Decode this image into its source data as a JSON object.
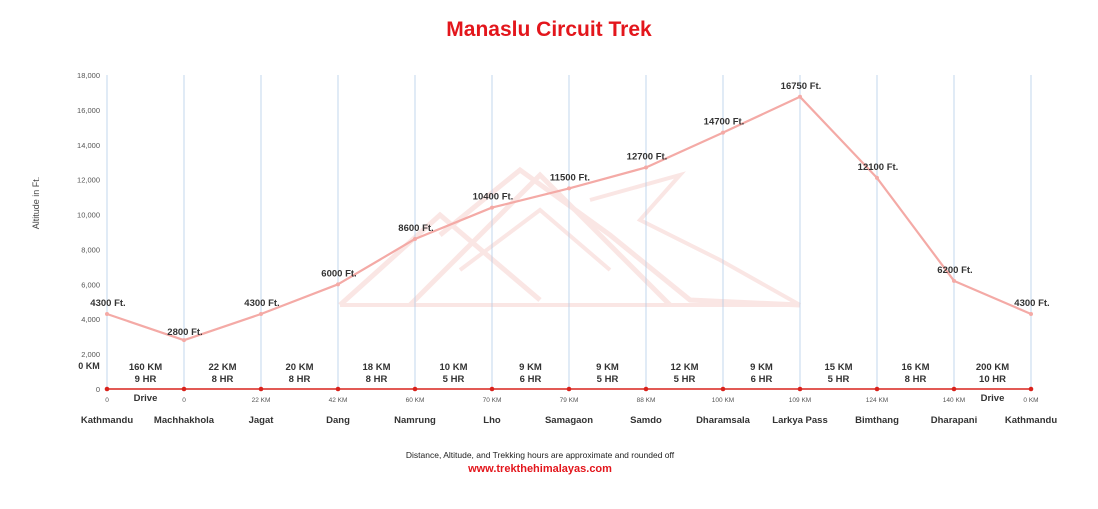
{
  "chart_data": {
    "type": "line",
    "title": "Manaslu Circuit  Trek",
    "ylabel": "Altitude in Ft.",
    "xlabel": "",
    "ylim": [
      0,
      18000
    ],
    "yticks": [
      0,
      2000,
      4000,
      6000,
      8000,
      10000,
      12000,
      14000,
      16000,
      18000
    ],
    "ytick_labels": [
      "0",
      "2,000",
      "4,000",
      "6,000",
      "8,000",
      "10,000",
      "12,000",
      "14,000",
      "16,000",
      "18,000"
    ],
    "grid": "vertical",
    "places": [
      "Kathmandu",
      "Machhakhola",
      "Jagat",
      "Dang",
      "Namrung",
      "Lho",
      "Samagaon",
      "Samdo",
      "Dharamsala",
      "Larkya Pass",
      "Bimthang",
      "Dharapani",
      "Kathmandu"
    ],
    "altitudes": [
      4300,
      2800,
      4300,
      6000,
      8600,
      10400,
      11500,
      12700,
      14700,
      16750,
      12100,
      6200,
      4300
    ],
    "altitude_labels": [
      "4300 Ft.",
      "2800 Ft.",
      "4300 Ft.",
      "6000 Ft.",
      "8600 Ft.",
      "10400 Ft.",
      "11500 Ft.",
      "12700 Ft.",
      "14700 Ft.",
      "16750 Ft.",
      "12100 Ft.",
      "6200 Ft.",
      "4300 Ft."
    ],
    "cumulative_km_labels": [
      "0",
      "0",
      "22 KM",
      "42 KM",
      "60 KM",
      "70 KM",
      "79 KM",
      "88 KM",
      "100 KM",
      "109 KM",
      "124 KM",
      "140 KM",
      "0 KM"
    ],
    "start_km_label": "0 KM",
    "segments": [
      {
        "km": "160 KM",
        "hours": "9 HR",
        "mode": "Drive"
      },
      {
        "km": "22 KM",
        "hours": "8 HR",
        "mode": ""
      },
      {
        "km": "20 KM",
        "hours": "8 HR",
        "mode": ""
      },
      {
        "km": "18 KM",
        "hours": "8 HR",
        "mode": ""
      },
      {
        "km": "10 KM",
        "hours": "5 HR",
        "mode": ""
      },
      {
        "km": "9 KM",
        "hours": "6 HR",
        "mode": ""
      },
      {
        "km": "9 KM",
        "hours": "5 HR",
        "mode": ""
      },
      {
        "km": "12 KM",
        "hours": "5 HR",
        "mode": ""
      },
      {
        "km": "9 KM",
        "hours": "6 HR",
        "mode": ""
      },
      {
        "km": "15 KM",
        "hours": "5 HR",
        "mode": ""
      },
      {
        "km": "16 KM",
        "hours": "8 HR",
        "mode": ""
      },
      {
        "km": "200 KM",
        "hours": "10 HR",
        "mode": "Drive"
      }
    ],
    "series": [
      {
        "name": "Altitude",
        "color": "#f4aaa6",
        "values": [
          4300,
          2800,
          4300,
          6000,
          8600,
          10400,
          11500,
          12700,
          14700,
          16750,
          12100,
          6200,
          4300
        ]
      }
    ],
    "colors": {
      "title": "#e3161c",
      "line": "#f4aaa6",
      "baseline": "#d9231d",
      "gridline": "#a9c6e6",
      "website": "#e3161c"
    }
  },
  "footer": {
    "note": "Distance, Altitude, and Trekking hours are approximate and rounded off",
    "website": "www.trekthehimalayas.com"
  }
}
